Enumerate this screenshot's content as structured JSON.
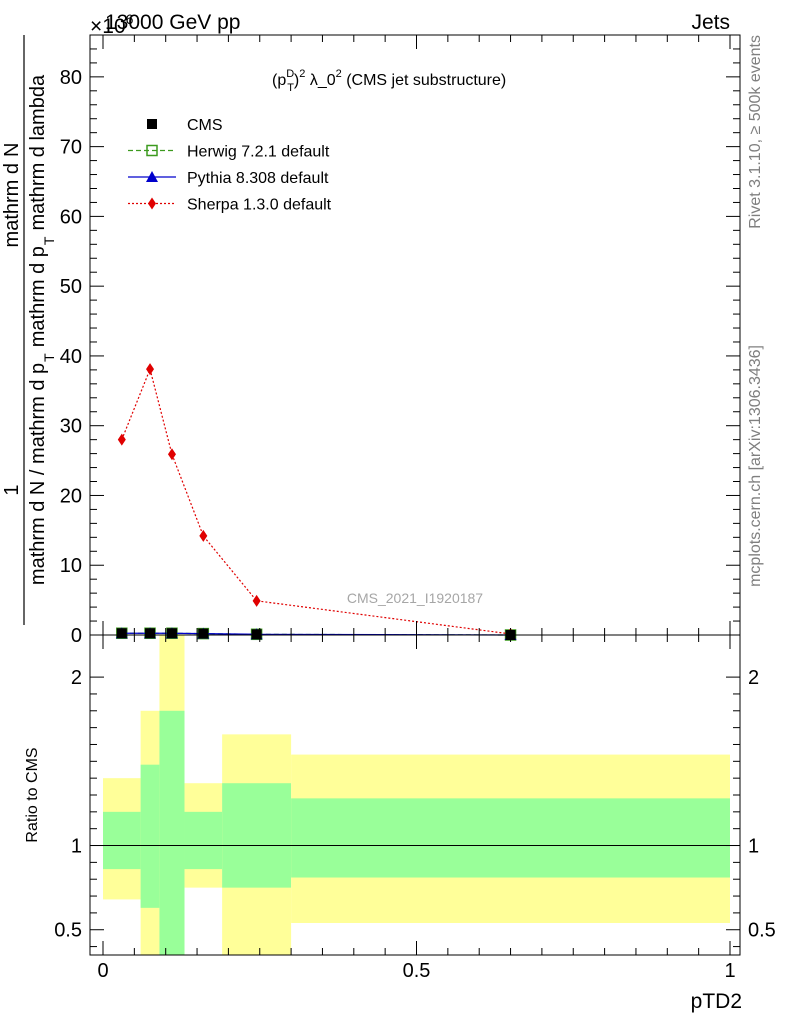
{
  "header": {
    "left": "13000 GeV pp",
    "right": "Jets",
    "exponent": "×10",
    "exponent_power": "6"
  },
  "title": {
    "main_pre": "(p",
    "main_sup": "D",
    "main_sub": "T",
    "main_post": ")",
    "main_sq": "2",
    "main_rest": " λ_0",
    "main_rest_sup": "2",
    "main_tail": " (CMS jet substructure)"
  },
  "side_labels": {
    "rivet": "Rivet 3.1.10, ≥ 500k events",
    "mcplots": "mcplots.cern.ch [arXiv:1306.3436]"
  },
  "watermark": "CMS_2021_I1920187",
  "colors": {
    "cms": "#000000",
    "herwig": "#3c9a1e",
    "pythia": "#0000cc",
    "sherpa": "#e00000",
    "band_inner": "#99ff99",
    "band_outer": "#ffff99"
  },
  "chart_data": [
    {
      "type": "line",
      "panel": "main",
      "ylabel_top_numer": "1",
      "ylabel_numerator": "mathrm d",
      "ylabel_numerator_N": "N",
      "ylabel_denominator": "mathrm d N / mathrm d p",
      "ylabel_denominator_mid": "mathrm d p",
      "ylabel_denominator_end": "mathrm d lambda",
      "ylabel_sub": "T",
      "ylabel_sub2": "T",
      "xlim": [
        0,
        1
      ],
      "ylim": [
        0,
        86
      ],
      "yticks": [
        0,
        10,
        20,
        30,
        40,
        50,
        60,
        70,
        80
      ],
      "ytick_labels": [
        "0",
        "10",
        "20",
        "30",
        "40",
        "50",
        "60",
        "70",
        "80"
      ],
      "legend_placement": "top-left",
      "series": [
        {
          "name": "CMS",
          "style": "marker-square",
          "x": [
            0.03,
            0.075,
            0.11,
            0.16,
            0.245,
            0.65
          ],
          "y": [
            0.25,
            0.25,
            0.25,
            0.2,
            0.1,
            0.0
          ]
        },
        {
          "name": "Herwig 7.2.1 default",
          "style": "dashed-open-square",
          "x": [
            0.03,
            0.075,
            0.11,
            0.16,
            0.245,
            0.65
          ],
          "y": [
            0.25,
            0.25,
            0.25,
            0.2,
            0.1,
            0.0
          ]
        },
        {
          "name": "Pythia 8.308 default",
          "style": "solid-triangle",
          "x": [
            0.03,
            0.075,
            0.11,
            0.16,
            0.245,
            0.65
          ],
          "y": [
            0.25,
            0.25,
            0.25,
            0.2,
            0.1,
            0.0
          ]
        },
        {
          "name": "Sherpa 1.3.0 default",
          "style": "dotted-diamond",
          "x": [
            0.03,
            0.075,
            0.11,
            0.16,
            0.245,
            0.65
          ],
          "y": [
            28.0,
            38.1,
            25.9,
            14.2,
            4.9,
            0.15
          ]
        }
      ]
    },
    {
      "type": "area",
      "panel": "ratio",
      "ylabel": "Ratio to CMS",
      "xlabel": "pTD2",
      "xlim": [
        0,
        1
      ],
      "ylim": [
        0.35,
        2.25
      ],
      "yticks": [
        0.5,
        1,
        2
      ],
      "ytick_labels": [
        "0.5",
        "1",
        "2"
      ],
      "xticks": [
        0,
        0.5,
        1
      ],
      "xtick_labels": [
        "0",
        "0.5",
        "1"
      ],
      "bins": [
        {
          "lo": 0.0,
          "hi": 0.06,
          "inner": [
            0.86,
            1.2
          ],
          "outer": [
            0.68,
            1.4
          ]
        },
        {
          "lo": 0.06,
          "hi": 0.09,
          "inner": [
            0.63,
            1.48
          ],
          "outer": [
            0.35,
            1.8
          ]
        },
        {
          "lo": 0.09,
          "hi": 0.13,
          "inner": [
            0.35,
            1.8
          ],
          "outer": [
            0.35,
            2.25
          ]
        },
        {
          "lo": 0.13,
          "hi": 0.19,
          "inner": [
            0.86,
            1.2
          ],
          "outer": [
            0.75,
            1.37
          ]
        },
        {
          "lo": 0.19,
          "hi": 0.3,
          "inner": [
            0.75,
            1.37
          ],
          "outer": [
            0.35,
            1.66
          ]
        },
        {
          "lo": 0.3,
          "hi": 1.0,
          "inner": [
            0.81,
            1.28
          ],
          "outer": [
            0.54,
            1.54
          ]
        }
      ]
    }
  ]
}
